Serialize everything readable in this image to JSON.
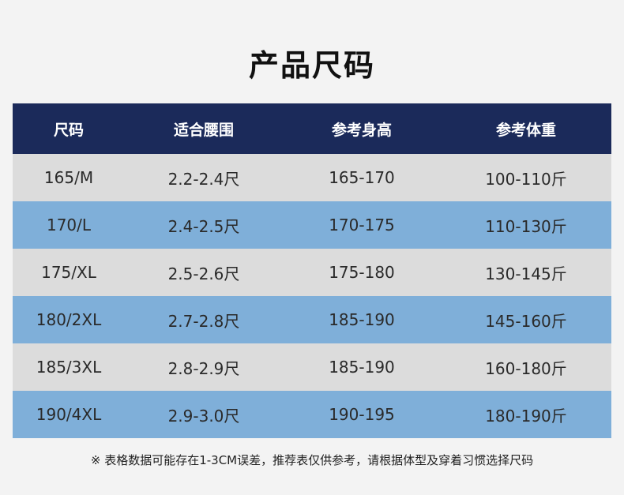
{
  "title": "产品尺码",
  "table": {
    "headers": [
      "尺码",
      "适合腰围",
      "参考身高",
      "参考体重"
    ],
    "rows": [
      [
        "165/M",
        "2.2-2.4尺",
        "165-170",
        "100-110斤"
      ],
      [
        "170/L",
        "2.4-2.5尺",
        "170-175",
        "110-130斤"
      ],
      [
        "175/XL",
        "2.5-2.6尺",
        "175-180",
        "130-145斤"
      ],
      [
        "180/2XL",
        "2.7-2.8尺",
        "185-190",
        "145-160斤"
      ],
      [
        "185/3XL",
        "2.8-2.9尺",
        "185-190",
        "160-180斤"
      ],
      [
        "190/4XL",
        "2.9-3.0尺",
        "190-195",
        "180-190斤"
      ]
    ]
  },
  "footnote": "※ 表格数据可能存在1-3CM误差，推荐表仅供参考，请根据体型及穿着习惯选择尺码",
  "colors": {
    "header_bg": "#1b2a5a",
    "row_gray": "#dcdcdc",
    "row_blue": "#7fafd9"
  }
}
